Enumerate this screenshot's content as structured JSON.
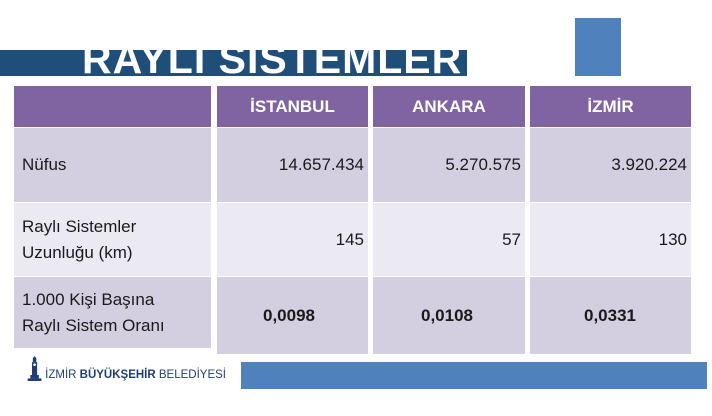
{
  "title": "RAYLI SİSTEMLER",
  "table": {
    "columns": [
      "İSTANBUL",
      "ANKARA",
      "İZMİR"
    ],
    "rows": [
      {
        "label_lines": [
          "Nüfus"
        ],
        "values": [
          "14.657.434",
          "5.270.575",
          "3.920.224"
        ]
      },
      {
        "label_lines": [
          "Raylı Sistemler",
          "Uzunluğu (km)"
        ],
        "values": [
          "145",
          "57",
          "130"
        ]
      },
      {
        "label_lines": [
          "1.000 Kişi Başına",
          "Raylı Sistem Oranı"
        ],
        "values": [
          "0,0098",
          "0,0108",
          "0,0331"
        ]
      }
    ]
  },
  "logo": {
    "text_part1": "İZMİR ",
    "text_bold": "BÜYÜKŞEHİR",
    "text_part2": " BELEDİYESİ"
  },
  "colors": {
    "title_band": "#1f4e79",
    "header": "#8064a2",
    "accent_blue": "#4f81bd",
    "row_dark": "#d4cfe0",
    "row_light": "#ebe9f1"
  }
}
